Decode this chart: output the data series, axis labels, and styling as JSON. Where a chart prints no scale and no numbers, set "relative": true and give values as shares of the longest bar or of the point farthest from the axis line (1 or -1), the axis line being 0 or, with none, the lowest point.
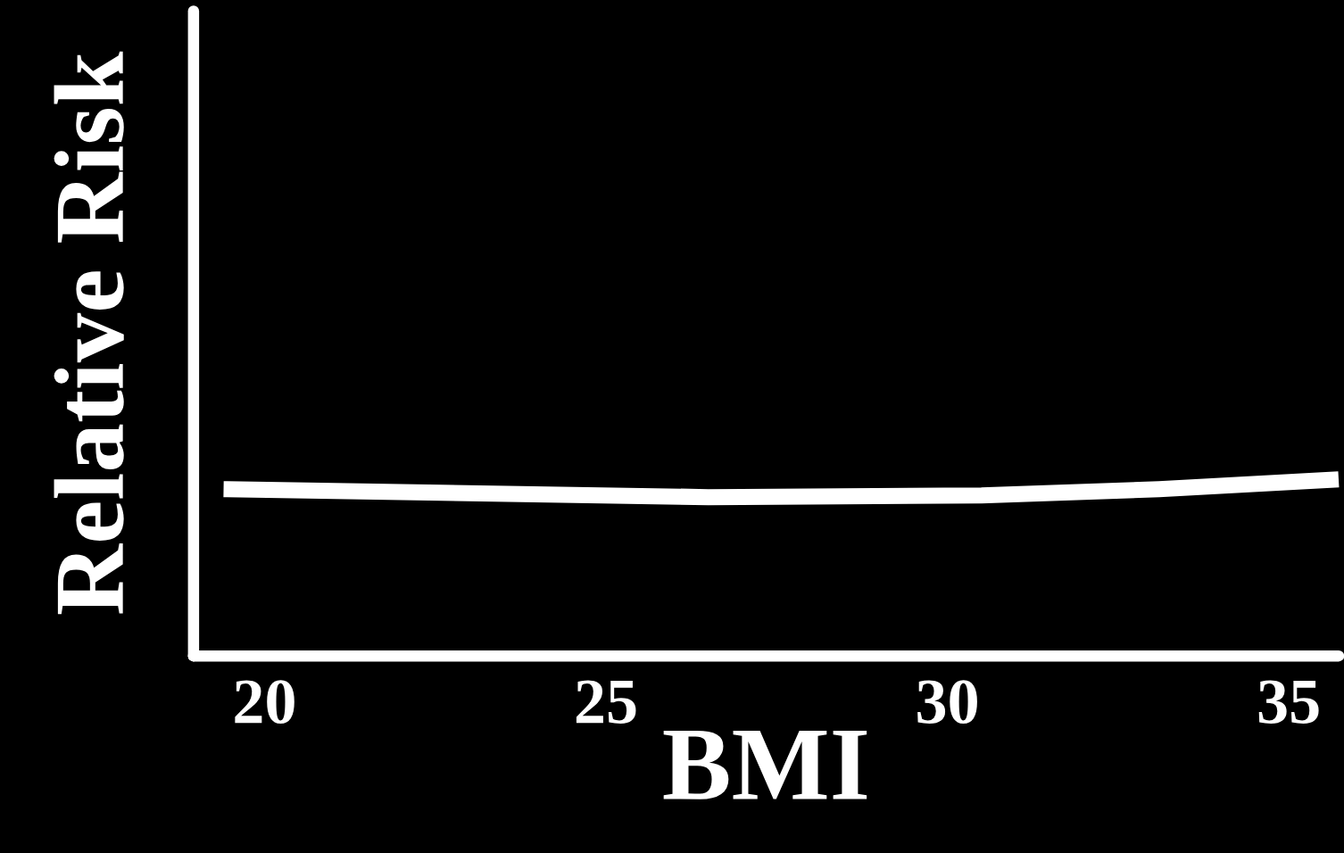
{
  "chart_data": {
    "type": "line",
    "xlabel": "BMI",
    "ylabel": "Relative Risk",
    "relative": true,
    "xlim": [
      18.96,
      35.73
    ],
    "xticks": [
      20,
      25,
      30,
      35
    ],
    "series": [
      {
        "color": "#ffffff",
        "x": [
          19.4,
          22.6,
          26.5,
          30.5,
          33.1,
          35.73
        ],
        "values": [
          0.944,
          0.924,
          0.899,
          0.909,
          0.944,
          1.0
        ]
      }
    ]
  }
}
